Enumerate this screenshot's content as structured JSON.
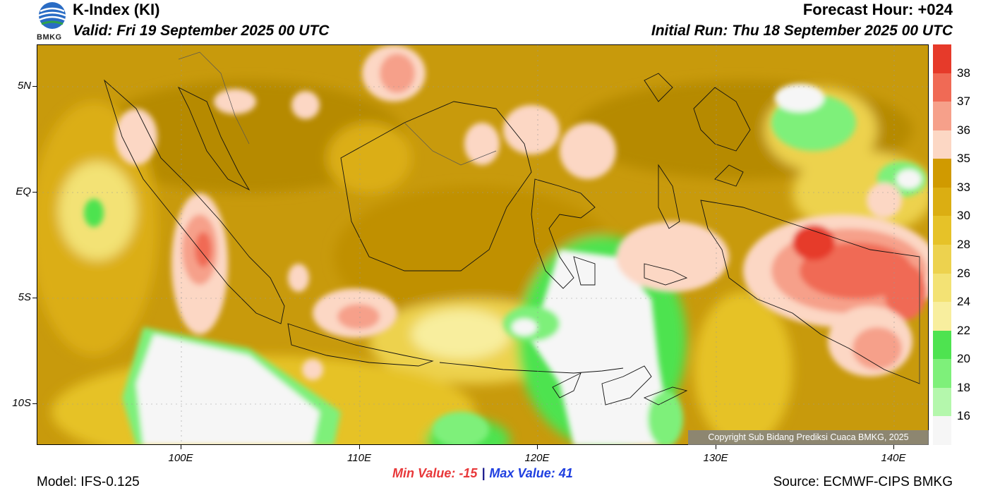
{
  "header": {
    "logo_text": "BMKG",
    "title": "K-Index (KI)",
    "valid": "Valid: Fri 19 September 2025 00 UTC",
    "forecast_hour": "Forecast Hour: +024",
    "initial_run": "Initial Run: Thu 18 September 2025 00 UTC"
  },
  "axes": {
    "lat_labels": [
      "5N",
      "EQ",
      "5S",
      "10S"
    ],
    "lon_labels": [
      "100E",
      "110E",
      "120E",
      "130E",
      "140E"
    ]
  },
  "colorbar": {
    "labels": [
      "38",
      "37",
      "36",
      "35",
      "33",
      "30",
      "28",
      "26",
      "24",
      "22",
      "20",
      "18",
      "16"
    ],
    "colors": [
      "#e63a2a",
      "#f06a55",
      "#f6a08a",
      "#fcd7c4",
      "#d09a00",
      "#dbae12",
      "#e6c228",
      "#edd24e",
      "#f3e274",
      "#f8ee9e",
      "#4ee350",
      "#7ef07a",
      "#b4f7ac",
      "#f6f6f6"
    ]
  },
  "footer": {
    "min_label": "Min Value: -15",
    "separator": "|",
    "max_label": "Max Value:  41",
    "model": "Model: IFS-0.125",
    "source": "Source: ECMWF-CIPS BMKG",
    "copyright": "Copyright Sub Bidang Prediksi Cuaca BMKG, 2025"
  },
  "map": {
    "base_color": "#c89a0c",
    "region": "Indonesia",
    "lon_range": [
      92,
      142
    ],
    "lat_range": [
      -12,
      7
    ]
  }
}
